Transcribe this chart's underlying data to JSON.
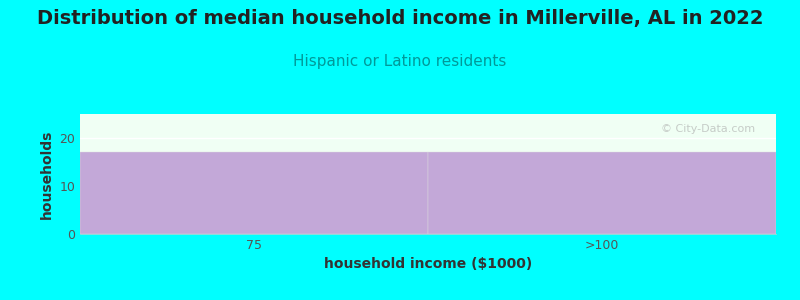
{
  "title": "Distribution of median household income in Millerville, AL in 2022",
  "subtitle": "Hispanic or Latino residents",
  "categories": [
    "75",
    ">100"
  ],
  "values": [
    17,
    17
  ],
  "bar_color": "#C3A8D8",
  "background_color": "#00FFFF",
  "plot_bg_color": "#F0FFF4",
  "xlabel": "household income ($1000)",
  "ylabel": "households",
  "ylim": [
    0,
    25
  ],
  "yticks": [
    0,
    10,
    20
  ],
  "title_fontsize": 14,
  "subtitle_fontsize": 11,
  "subtitle_color": "#009999",
  "axis_label_fontsize": 10,
  "watermark": "© City-Data.com",
  "title_color": "#222222"
}
